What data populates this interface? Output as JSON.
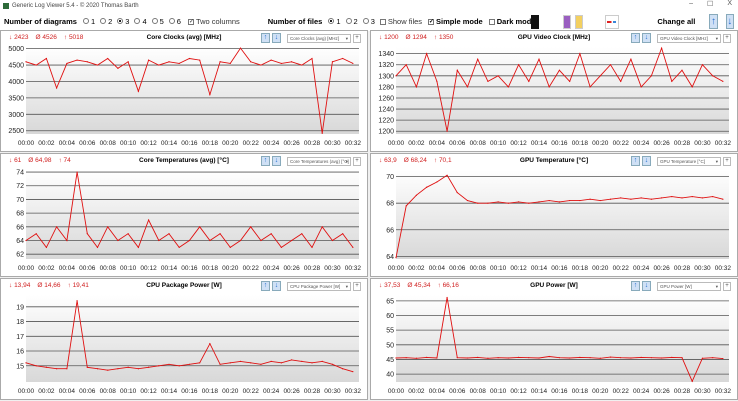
{
  "window": {
    "title": "Generic Log Viewer 5.4 - © 2020 Thomas Barth",
    "minimize": "–",
    "maximize": "☐",
    "close": "X"
  },
  "toolbar": {
    "diagrams_label": "Number of diagrams",
    "diagram_options": [
      "1",
      "2",
      "3",
      "4",
      "5",
      "6"
    ],
    "diagrams_selected": "3",
    "two_columns_label": "Two columns",
    "two_columns_checked": true,
    "files_label": "Number of files",
    "file_options": [
      "1",
      "2",
      "3"
    ],
    "files_selected": "1",
    "show_files_label": "Show files",
    "show_files_checked": false,
    "simple_mode_label": "Simple mode",
    "simple_mode_checked": true,
    "dark_mode_label": "Dark mod",
    "dark_mode_checked": false,
    "change_all_label": "Change all",
    "icons": [
      "camera-icon",
      "save-icon",
      "folder-icon",
      "remove-swap-icon",
      "arrow-up-icon",
      "arrow-down-icon"
    ]
  },
  "colors": {
    "line": "#e01010",
    "stats": "#d02020",
    "grid": "#555555",
    "button": "#2a6fd0"
  },
  "x_labels": [
    "00:00",
    "00:02",
    "00:04",
    "00:06",
    "00:08",
    "00:10",
    "00:12",
    "00:14",
    "00:16",
    "00:18",
    "00:20",
    "00:22",
    "00:24",
    "00:26",
    "00:28",
    "00:30",
    "00:32"
  ],
  "chart_data": [
    {
      "type": "line",
      "title": "Core Clocks (avg) [MHz]",
      "dropdown": "Core Clocks (avg) [MHz]",
      "min": "2423",
      "avg": "4526",
      "max": "5018",
      "ylim": [
        2400,
        5050
      ],
      "yticks": [
        2500,
        3000,
        3500,
        4000,
        4500,
        5000
      ],
      "values": [
        4600,
        4500,
        4700,
        3800,
        4550,
        4650,
        4600,
        4500,
        4700,
        4400,
        4600,
        3700,
        4650,
        4500,
        4600,
        4550,
        4700,
        4650,
        3600,
        4600,
        4550,
        5018,
        4600,
        4500,
        4650,
        4550,
        4600,
        4500,
        4700,
        2423,
        4600,
        4700,
        4550
      ]
    },
    {
      "type": "line",
      "title": "GPU Video Clock [MHz]",
      "dropdown": "GPU Video Clock [MHz]",
      "min": "1200",
      "avg": "1294",
      "max": "1350",
      "ylim": [
        1195,
        1352
      ],
      "yticks": [
        1200,
        1220,
        1240,
        1260,
        1280,
        1300,
        1320,
        1340
      ],
      "values": [
        1300,
        1320,
        1280,
        1340,
        1290,
        1200,
        1310,
        1280,
        1330,
        1290,
        1300,
        1280,
        1320,
        1290,
        1330,
        1280,
        1310,
        1290,
        1340,
        1280,
        1300,
        1320,
        1290,
        1330,
        1280,
        1300,
        1350,
        1290,
        1310,
        1280,
        1320,
        1300,
        1290
      ]
    },
    {
      "type": "line",
      "title": "Core Temperatures (avg) [°C]",
      "dropdown": "Core Temperatures (avg) [°C]",
      "min": "61",
      "avg": "64,98",
      "max": "74",
      "ylim": [
        61.3,
        74.3
      ],
      "yticks": [
        62,
        64,
        66,
        68,
        70,
        72,
        74
      ],
      "values": [
        64,
        65,
        63,
        66,
        64,
        74,
        65,
        63,
        66,
        64,
        65,
        63,
        67,
        64,
        65,
        63,
        64,
        66,
        64,
        65,
        63,
        64,
        66,
        64,
        65,
        63,
        64,
        65,
        63,
        66,
        64,
        65,
        63
      ]
    },
    {
      "type": "line",
      "title": "GPU Temperature [°C]",
      "dropdown": "GPU Temperature [°C]",
      "min": "63,9",
      "avg": "68,24",
      "max": "70,1",
      "ylim": [
        63.8,
        70.5
      ],
      "yticks": [
        64,
        66,
        68,
        70
      ],
      "values": [
        63.9,
        67.8,
        68.6,
        69.2,
        69.6,
        70.1,
        68.8,
        68.2,
        68.0,
        68.0,
        68.1,
        68.0,
        68.1,
        68.0,
        68.1,
        68.2,
        68.1,
        68.2,
        68.2,
        68.3,
        68.2,
        68.3,
        68.4,
        68.3,
        68.4,
        68.3,
        68.4,
        68.5,
        68.4,
        68.5,
        68.4,
        68.5,
        68.3
      ]
    },
    {
      "type": "line",
      "title": "CPU Package Power [W]",
      "dropdown": "CPU Package Power [W]",
      "min": "13,94",
      "avg": "14,66",
      "max": "19,41",
      "ylim": [
        13.9,
        19.8
      ],
      "yticks": [
        15,
        16,
        17,
        18,
        19
      ],
      "values": [
        15.2,
        15.0,
        14.9,
        14.8,
        14.8,
        19.41,
        14.9,
        14.8,
        14.7,
        14.8,
        14.9,
        14.8,
        14.9,
        15.0,
        15.1,
        15.0,
        15.1,
        15.2,
        16.5,
        15.1,
        15.2,
        15.3,
        15.2,
        15.1,
        15.3,
        15.2,
        15.4,
        15.3,
        15.2,
        15.3,
        15.1,
        14.8,
        14.6
      ]
    },
    {
      "type": "line",
      "title": "GPU Power [W]",
      "dropdown": "GPU Power [W]",
      "min": "37,53",
      "avg": "45,34",
      "max": "66,16",
      "ylim": [
        37.3,
        67
      ],
      "yticks": [
        40,
        45,
        50,
        55,
        60,
        65
      ],
      "values": [
        45.5,
        45.6,
        45.4,
        45.7,
        45.5,
        66.16,
        45.6,
        45.5,
        45.7,
        45.4,
        45.6,
        45.5,
        45.7,
        45.6,
        45.5,
        46,
        45.6,
        45.5,
        45.7,
        45.6,
        45.4,
        45.8,
        45.6,
        45.5,
        45.7,
        45.6,
        45.5,
        45.7,
        45.6,
        37.53,
        45.4,
        45.6,
        45.3
      ]
    }
  ]
}
